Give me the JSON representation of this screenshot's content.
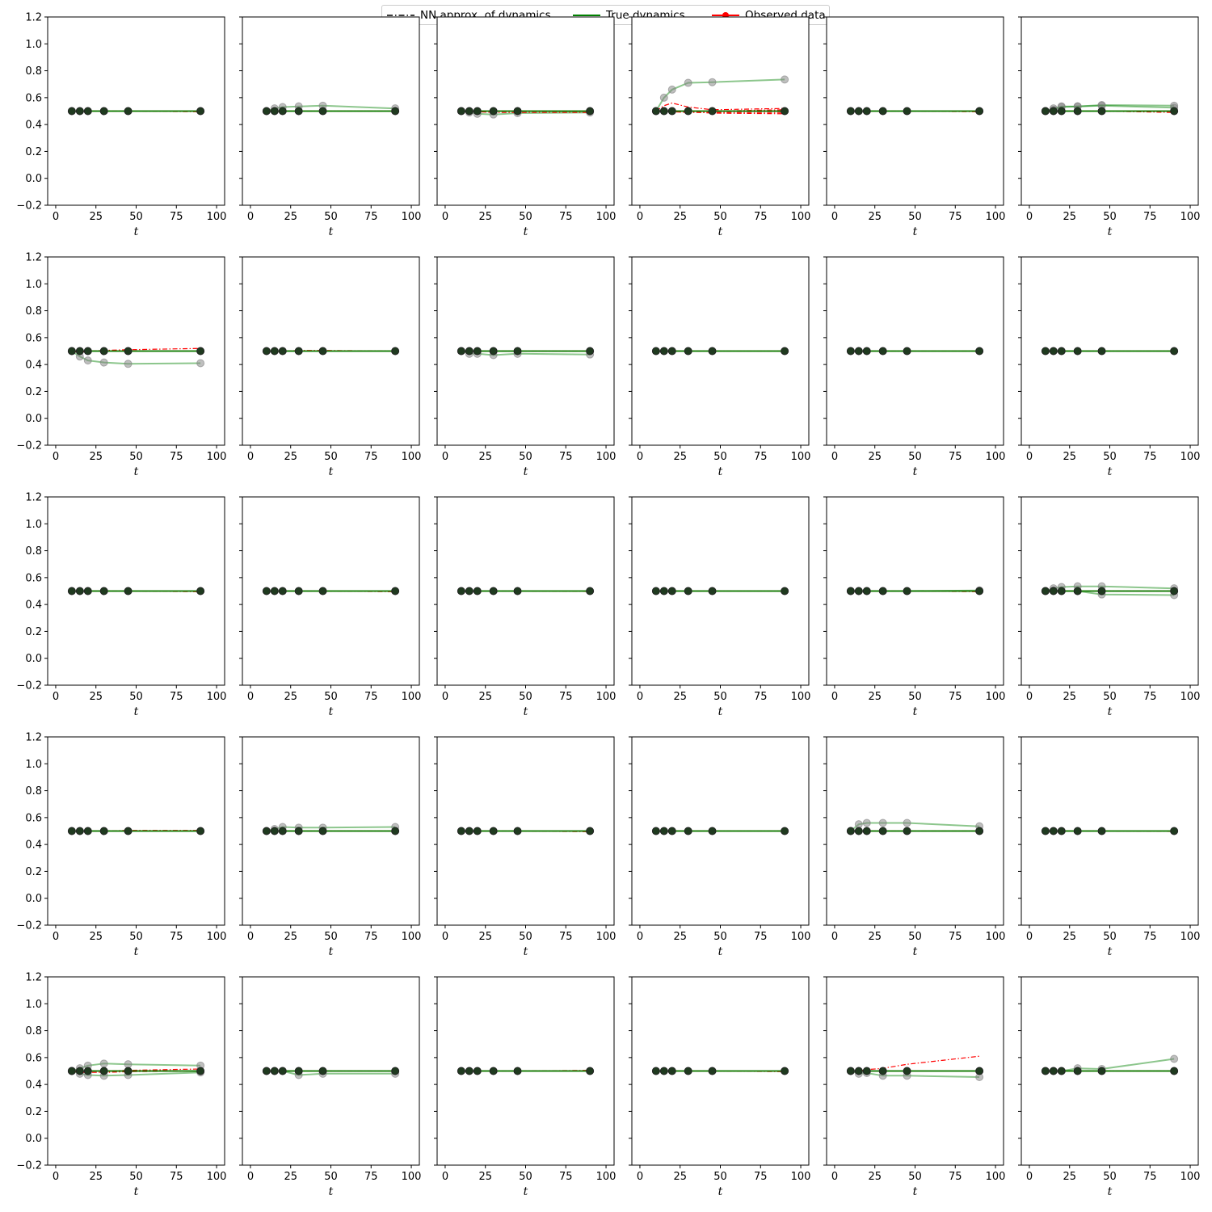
{
  "legend": {
    "nn_label": "NN approx. of dynamics",
    "true_label": "True dynamics",
    "obs_label": "Observed data"
  },
  "colors": {
    "nn": "#000000",
    "true": "#008000",
    "observed": "#ff0000",
    "gray_points": "#808080"
  },
  "chart_data": {
    "type": "line",
    "layout": "5x6 grid of subplots, shared y axis per row",
    "xlabel": "t",
    "ylabel": "",
    "xlim": [
      -5,
      105
    ],
    "ylim": [
      -0.2,
      1.2
    ],
    "xticks": [
      0,
      25,
      50,
      75,
      100
    ],
    "yticks": [
      -0.2,
      0.0,
      0.2,
      0.4,
      0.6,
      0.8,
      1.0,
      1.2
    ],
    "ytick_labels": [
      "−0.2",
      "0.0",
      "0.2",
      "0.4",
      "0.6",
      "0.8",
      "1.0",
      "1.2"
    ],
    "xtick_labels": [
      "0",
      "25",
      "50",
      "75",
      "100"
    ],
    "t": [
      10,
      15,
      20,
      30,
      45,
      90
    ],
    "legend_position": "top-center",
    "grid": false,
    "panels": [
      {
        "nn": [
          [
            0.5,
            0.5,
            0.5,
            0.5,
            0.5,
            0.495
          ]
        ],
        "gray": []
      },
      {
        "nn": [
          [
            0.5,
            0.5,
            0.5,
            0.5,
            0.5,
            0.5
          ]
        ],
        "gray": [
          [
            0.5,
            0.52,
            0.53,
            0.535,
            0.54,
            0.52
          ]
        ]
      },
      {
        "nn": [
          [
            0.5,
            0.5,
            0.5,
            0.5,
            0.5,
            0.5
          ],
          [
            0.5,
            0.5,
            0.495,
            0.49,
            0.49,
            0.49
          ]
        ],
        "gray": [
          [
            0.5,
            0.49,
            0.48,
            0.475,
            0.485,
            0.49
          ]
        ]
      },
      {
        "nn": [
          [
            0.5,
            0.54,
            0.56,
            0.53,
            0.51,
            0.52
          ],
          [
            0.5,
            0.5,
            0.5,
            0.5,
            0.5,
            0.51
          ],
          [
            0.5,
            0.5,
            0.495,
            0.49,
            0.49,
            0.49
          ],
          [
            0.5,
            0.5,
            0.5,
            0.495,
            0.485,
            0.48
          ]
        ],
        "gray": [
          [
            0.5,
            0.6,
            0.66,
            0.71,
            0.715,
            0.735
          ]
        ]
      },
      {
        "nn": [
          [
            0.5,
            0.5,
            0.5,
            0.5,
            0.5,
            0.495
          ]
        ],
        "gray": []
      },
      {
        "nn": [
          [
            0.5,
            0.5,
            0.5,
            0.5,
            0.5,
            0.49
          ]
        ],
        "gray": [
          [
            0.5,
            0.52,
            0.535,
            0.535,
            0.545,
            0.54
          ],
          [
            0.5,
            0.51,
            0.53,
            0.535,
            0.54,
            0.525
          ]
        ]
      },
      {
        "nn": [
          [
            0.5,
            0.49,
            0.5,
            0.505,
            0.51,
            0.52
          ]
        ],
        "gray": [
          [
            0.5,
            0.46,
            0.43,
            0.415,
            0.405,
            0.41
          ]
        ]
      },
      {
        "nn": [
          [
            0.5,
            0.5,
            0.5,
            0.505,
            0.505,
            0.5
          ]
        ],
        "gray": []
      },
      {
        "nn": [
          [
            0.5,
            0.5,
            0.5,
            0.5,
            0.5,
            0.5
          ]
        ],
        "gray": [
          [
            0.5,
            0.48,
            0.48,
            0.47,
            0.48,
            0.475
          ]
        ]
      },
      {
        "nn": [
          [
            0.5,
            0.5,
            0.5,
            0.5,
            0.5,
            0.5
          ]
        ],
        "gray": []
      },
      {
        "nn": [
          [
            0.5,
            0.5,
            0.5,
            0.5,
            0.5,
            0.5
          ]
        ],
        "gray": []
      },
      {
        "nn": [
          [
            0.5,
            0.5,
            0.5,
            0.5,
            0.5,
            0.5
          ]
        ],
        "gray": []
      },
      {
        "nn": [
          [
            0.5,
            0.5,
            0.5,
            0.5,
            0.5,
            0.495
          ]
        ],
        "gray": []
      },
      {
        "nn": [
          [
            0.5,
            0.5,
            0.5,
            0.5,
            0.5,
            0.495
          ]
        ],
        "gray": []
      },
      {
        "nn": [
          [
            0.5,
            0.5,
            0.5,
            0.5,
            0.5,
            0.497
          ]
        ],
        "gray": []
      },
      {
        "nn": [
          [
            0.5,
            0.5,
            0.5,
            0.5,
            0.5,
            0.5
          ]
        ],
        "gray": []
      },
      {
        "nn": [
          [
            0.5,
            0.5,
            0.5,
            0.5,
            0.5,
            0.495
          ]
        ],
        "gray": [
          [
            0.5,
            0.5,
            0.5,
            0.5,
            0.5,
            0.505
          ]
        ]
      },
      {
        "nn": [
          [
            0.5,
            0.5,
            0.5,
            0.5,
            0.5,
            0.5
          ]
        ],
        "gray": [
          [
            0.5,
            0.52,
            0.53,
            0.535,
            0.535,
            0.52
          ],
          [
            0.5,
            0.505,
            0.5,
            0.5,
            0.475,
            0.47
          ]
        ]
      },
      {
        "nn": [
          [
            0.5,
            0.5,
            0.5,
            0.5,
            0.505,
            0.505
          ]
        ],
        "gray": []
      },
      {
        "nn": [
          [
            0.5,
            0.5,
            0.5,
            0.5,
            0.5,
            0.5
          ]
        ],
        "gray": [
          [
            0.5,
            0.515,
            0.53,
            0.525,
            0.525,
            0.53
          ]
        ]
      },
      {
        "nn": [
          [
            0.5,
            0.5,
            0.5,
            0.5,
            0.5,
            0.495
          ]
        ],
        "gray": []
      },
      {
        "nn": [
          [
            0.5,
            0.5,
            0.5,
            0.5,
            0.5,
            0.5
          ]
        ],
        "gray": []
      },
      {
        "nn": [
          [
            0.5,
            0.5,
            0.5,
            0.5,
            0.5,
            0.5
          ]
        ],
        "gray": [
          [
            0.5,
            0.55,
            0.56,
            0.56,
            0.56,
            0.535
          ]
        ]
      },
      {
        "nn": [
          [
            0.5,
            0.5,
            0.5,
            0.5,
            0.5,
            0.497
          ]
        ],
        "gray": []
      },
      {
        "nn": [
          [
            0.5,
            0.5,
            0.5,
            0.5,
            0.505,
            0.515
          ],
          [
            0.5,
            0.49,
            0.49,
            0.49,
            0.495,
            0.5
          ]
        ],
        "gray": [
          [
            0.5,
            0.52,
            0.54,
            0.555,
            0.55,
            0.54
          ],
          [
            0.5,
            0.48,
            0.47,
            0.465,
            0.47,
            0.49
          ]
        ]
      },
      {
        "nn": [
          [
            0.5,
            0.5,
            0.5,
            0.5,
            0.5,
            0.5
          ]
        ],
        "gray": [
          [
            0.5,
            0.5,
            0.5,
            0.47,
            0.48,
            0.48
          ]
        ]
      },
      {
        "nn": [
          [
            0.5,
            0.5,
            0.5,
            0.5,
            0.5,
            0.505
          ]
        ],
        "gray": []
      },
      {
        "nn": [
          [
            0.5,
            0.5,
            0.5,
            0.5,
            0.5,
            0.495
          ]
        ],
        "gray": []
      },
      {
        "nn": [
          [
            0.5,
            0.5,
            0.51,
            0.52,
            0.55,
            0.61
          ]
        ],
        "gray": [
          [
            0.5,
            0.48,
            0.485,
            0.465,
            0.465,
            0.455
          ]
        ]
      },
      {
        "nn": [
          [
            0.5,
            0.5,
            0.5,
            0.5,
            0.5,
            0.5
          ]
        ],
        "gray": [
          [
            0.5,
            0.5,
            0.5,
            0.52,
            0.515,
            0.59
          ]
        ]
      }
    ]
  }
}
